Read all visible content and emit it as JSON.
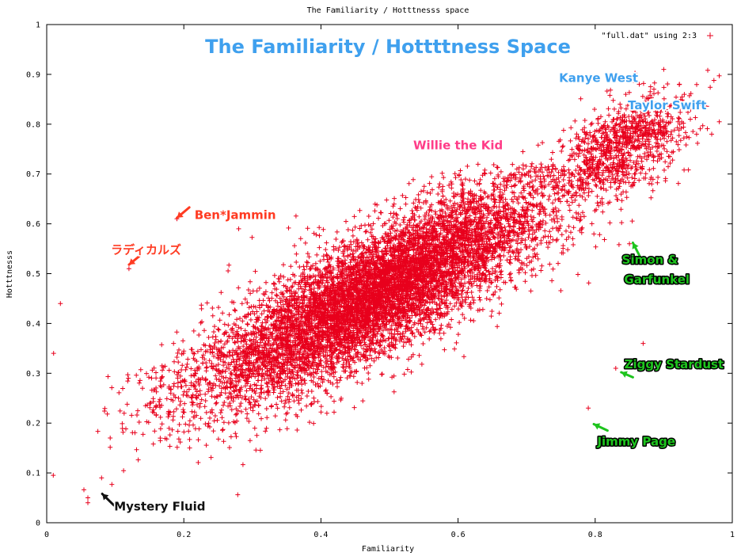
{
  "chart_data": {
    "type": "scatter",
    "title": "The Familiarity / Hotttnesss space",
    "overlay_title": "The Familiarity / Hottttness Space",
    "xlabel": "Familiarity",
    "ylabel": "Hotttnesss",
    "xlim": [
      0,
      1
    ],
    "ylim": [
      0,
      1
    ],
    "xticks": [
      "0",
      "0.2",
      "0.4",
      "0.6",
      "0.8",
      "1"
    ],
    "yticks": [
      "0",
      "0.1",
      "0.2",
      "0.3",
      "0.4",
      "0.5",
      "0.6",
      "0.7",
      "0.8",
      "0.9",
      "1"
    ],
    "grid": false,
    "legend_position": "top-right",
    "series": [
      {
        "name": "\"full.dat\" using 2:3",
        "marker": "plus",
        "color": "#e8001c",
        "clusters": [
          {
            "x_mean": 0.48,
            "y_mean": 0.46,
            "x_sd": 0.13,
            "y_sd": 0.11,
            "correlation": 0.82,
            "weight": 0.9
          },
          {
            "x_mean": 0.84,
            "y_mean": 0.76,
            "x_sd": 0.05,
            "y_sd": 0.05,
            "correlation": 0.5,
            "weight": 0.1
          }
        ],
        "y_cap": 0.72,
        "outliers": [
          {
            "x": 0.9,
            "y": 0.91
          },
          {
            "x": 0.93,
            "y": 0.86
          },
          {
            "x": 0.97,
            "y": 0.78
          },
          {
            "x": 0.19,
            "y": 0.61
          },
          {
            "x": 0.12,
            "y": 0.51
          },
          {
            "x": 0.85,
            "y": 0.56
          },
          {
            "x": 0.83,
            "y": 0.31
          },
          {
            "x": 0.79,
            "y": 0.23
          },
          {
            "x": 0.87,
            "y": 0.36
          },
          {
            "x": 0.02,
            "y": 0.44
          },
          {
            "x": 0.01,
            "y": 0.34
          },
          {
            "x": 0.06,
            "y": 0.05
          },
          {
            "x": 0.06,
            "y": 0.04
          },
          {
            "x": 0.08,
            "y": 0.09
          },
          {
            "x": 0.28,
            "y": 0.59
          }
        ]
      }
    ],
    "annotations": [
      {
        "text": "Kanye West",
        "x": 0.805,
        "y": 0.885,
        "color": "#3fa0ee",
        "arrow": false
      },
      {
        "text": "Taylor Swift",
        "x": 0.905,
        "y": 0.83,
        "color": "#3fa0ee",
        "arrow": false
      },
      {
        "text": "Willie the Kid",
        "x": 0.6,
        "y": 0.75,
        "color": "#ff3d88",
        "arrow": false
      },
      {
        "text": "Ben*Jammin",
        "x": 0.275,
        "y": 0.61,
        "color": "#ff3b22",
        "arrow": true,
        "ax": 0.208,
        "ay": 0.633,
        "bx": 0.19,
        "by": 0.612
      },
      {
        "text": "ラディカルズ",
        "x": 0.145,
        "y": 0.54,
        "color": "#ff3b22",
        "arrow": true,
        "ax": 0.135,
        "ay": 0.535,
        "bx": 0.12,
        "by": 0.518
      },
      {
        "text": "Simon &",
        "x": 0.88,
        "y": 0.52,
        "color": "#1ec41e",
        "arrow": true,
        "ax": 0.865,
        "ay": 0.535,
        "bx": 0.855,
        "by": 0.562
      },
      {
        "text": "Garfunkel",
        "x": 0.89,
        "y": 0.48,
        "color": "#1ec41e",
        "arrow": false
      },
      {
        "text": "Ziggy Stardust",
        "x": 0.915,
        "y": 0.31,
        "color": "#1ec41e",
        "arrow": true,
        "ax": 0.855,
        "ay": 0.292,
        "bx": 0.838,
        "by": 0.302
      },
      {
        "text": "Jimmy Page",
        "x": 0.86,
        "y": 0.155,
        "color": "#1ec41e",
        "arrow": true,
        "ax": 0.818,
        "ay": 0.185,
        "bx": 0.798,
        "by": 0.198
      },
      {
        "text": "Mystery Fluid",
        "x": 0.165,
        "y": 0.025,
        "color": "#111111",
        "arrow": true,
        "ax": 0.098,
        "ay": 0.035,
        "bx": 0.081,
        "by": 0.058
      }
    ]
  }
}
